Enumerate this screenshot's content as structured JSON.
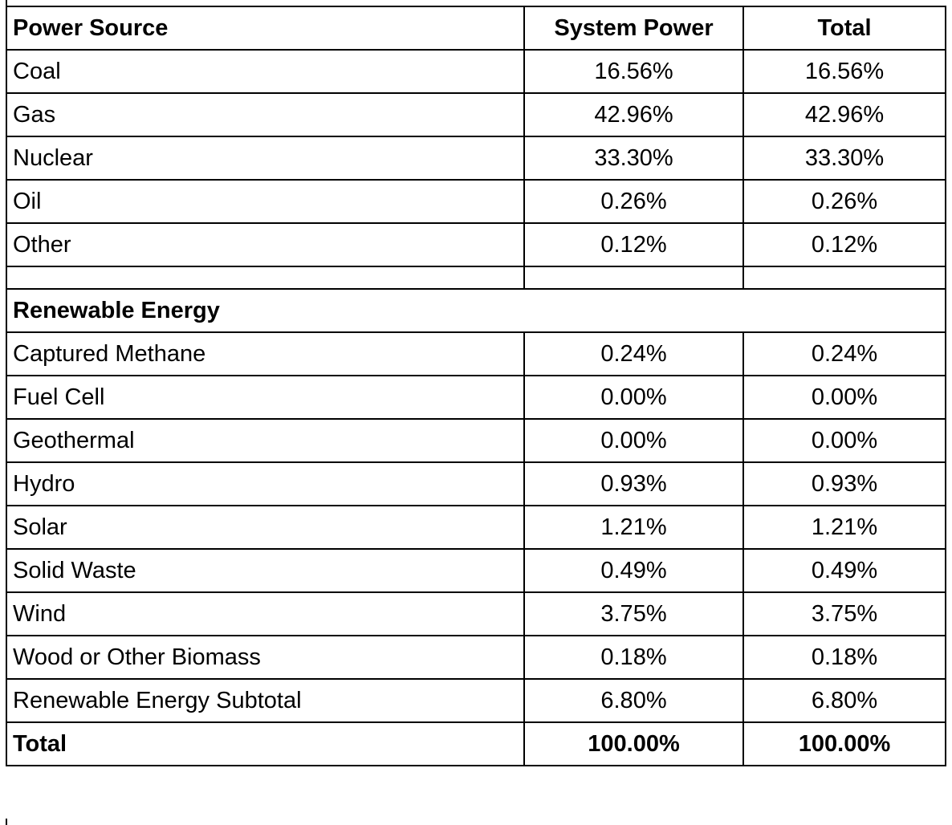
{
  "table": {
    "headers": {
      "source": "Power Source",
      "system_power": "System Power",
      "total": "Total"
    },
    "rows": [
      {
        "source": "Coal",
        "system_power": "16.56%",
        "total": "16.56%"
      },
      {
        "source": "Gas",
        "system_power": "42.96%",
        "total": "42.96%"
      },
      {
        "source": "Nuclear",
        "system_power": "33.30%",
        "total": "33.30%"
      },
      {
        "source": "Oil",
        "system_power": "0.26%",
        "total": "0.26%"
      },
      {
        "source": "Other",
        "system_power": "0.12%",
        "total": "0.12%"
      }
    ],
    "renewable_section_label": "Renewable Energy",
    "renewable_rows": [
      {
        "source": "Captured Methane",
        "system_power": "0.24%",
        "total": "0.24%"
      },
      {
        "source": "Fuel Cell",
        "system_power": "0.00%",
        "total": "0.00%"
      },
      {
        "source": "Geothermal",
        "system_power": "0.00%",
        "total": "0.00%"
      },
      {
        "source": "Hydro",
        "system_power": "0.93%",
        "total": "0.93%"
      },
      {
        "source": "Solar",
        "system_power": "1.21%",
        "total": "1.21%"
      },
      {
        "source": "Solid Waste",
        "system_power": "0.49%",
        "total": "0.49%"
      },
      {
        "source": "Wind",
        "system_power": "3.75%",
        "total": "3.75%"
      },
      {
        "source": "Wood or Other Biomass",
        "system_power": "0.18%",
        "total": "0.18%"
      },
      {
        "source": "Renewable Energy Subtotal",
        "system_power": "6.80%",
        "total": "6.80%"
      }
    ],
    "total_row": {
      "source": "Total",
      "system_power": "100.00%",
      "total": "100.00%"
    }
  }
}
